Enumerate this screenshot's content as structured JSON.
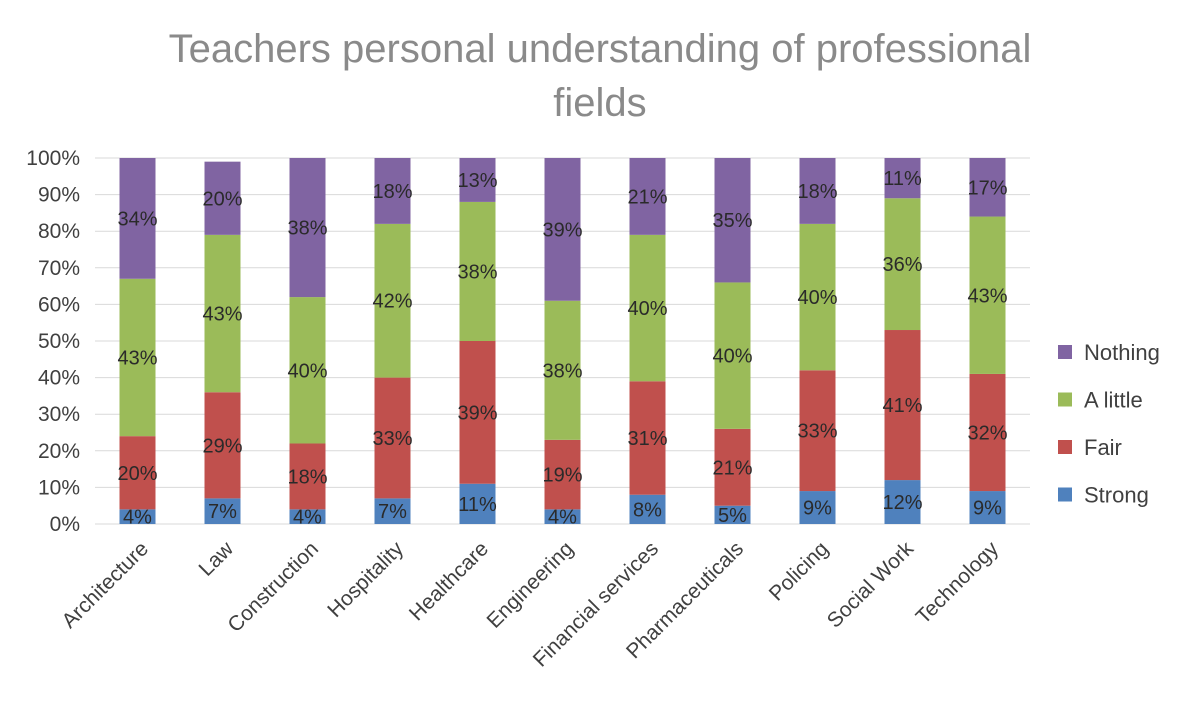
{
  "chart_data": {
    "type": "bar",
    "stacked": true,
    "title": "Teachers personal understanding of professional fields",
    "categories": [
      "Architecture",
      "Law",
      "Construction",
      "Hospitality",
      "Healthcare",
      "Engineering",
      "Financial services",
      "Pharmaceuticals",
      "Policing",
      "Social Work",
      "Technology"
    ],
    "series": [
      {
        "name": "Strong",
        "color": "#4f81bd",
        "values": [
          4,
          7,
          4,
          7,
          11,
          4,
          8,
          5,
          9,
          12,
          9
        ]
      },
      {
        "name": "Fair",
        "color": "#c0504d",
        "values": [
          20,
          29,
          18,
          33,
          39,
          19,
          31,
          21,
          33,
          41,
          32
        ]
      },
      {
        "name": "A little",
        "color": "#9bbb59",
        "values": [
          43,
          43,
          40,
          42,
          38,
          38,
          40,
          40,
          40,
          36,
          43
        ]
      },
      {
        "name": "Nothing",
        "color": "#8064a2",
        "values": [
          34,
          20,
          38,
          18,
          13,
          39,
          21,
          35,
          18,
          11,
          17
        ]
      }
    ],
    "data_labels": [
      [
        "4%",
        "7%",
        "4%",
        "7%",
        "11%",
        "4%",
        "8%",
        "5%",
        "9%",
        "12%",
        "9%"
      ],
      [
        "20%",
        "29%",
        "18%",
        "33%",
        "39%",
        "19%",
        "31%",
        "21%",
        "33%",
        "41%",
        "32%"
      ],
      [
        "43%",
        "43%",
        "40%",
        "42%",
        "38%",
        "38%",
        "40%",
        "40%",
        "40%",
        "36%",
        "43%"
      ],
      [
        "34%",
        "20%",
        "38%",
        "18%",
        "13%",
        "39%",
        "21%",
        "35%",
        "18%",
        "11%",
        "17%"
      ]
    ],
    "y_ticks": [
      "0%",
      "10%",
      "20%",
      "30%",
      "40%",
      "50%",
      "60%",
      "70%",
      "80%",
      "90%",
      "100%"
    ],
    "ylim": [
      0,
      100
    ],
    "grid": true,
    "legend_position": "right",
    "legend_order": [
      "Nothing",
      "A little",
      "Fair",
      "Strong"
    ]
  }
}
